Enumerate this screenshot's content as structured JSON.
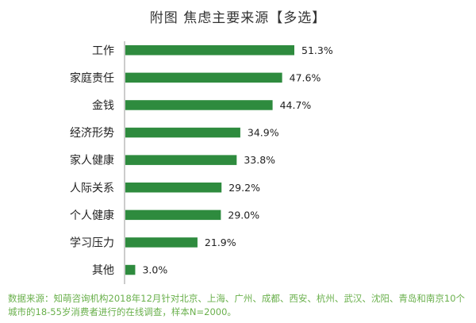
{
  "chart_data": {
    "type": "bar",
    "orientation": "horizontal",
    "title": "附图  焦虑主要来源【多选】",
    "categories": [
      "工作",
      "家庭责任",
      "金钱",
      "经济形势",
      "家人健康",
      "人际关系",
      "个人健康",
      "学习压力",
      "其他"
    ],
    "values": [
      51.3,
      47.6,
      44.7,
      34.9,
      33.8,
      29.2,
      29.0,
      21.9,
      3.0
    ],
    "value_labels": [
      "51.3%",
      "47.6%",
      "44.7%",
      "34.9%",
      "33.8%",
      "29.2%",
      "29.0%",
      "21.9%",
      "3.0%"
    ],
    "unit": "%",
    "xlim": [
      0,
      51.3
    ],
    "grid": false,
    "legend": "none",
    "bar_color": "#2e8b3e",
    "axis_color": "#9a9a9a"
  },
  "footnote": {
    "text": "数据来源：知萌咨询机构2018年12月针对北京、上海、广州、成都、西安、杭州、武汉、沈阳、青岛和南京10个城市的18-55岁消费者进行的在线调查，样本N=2000。",
    "color": "#6ab04c"
  }
}
